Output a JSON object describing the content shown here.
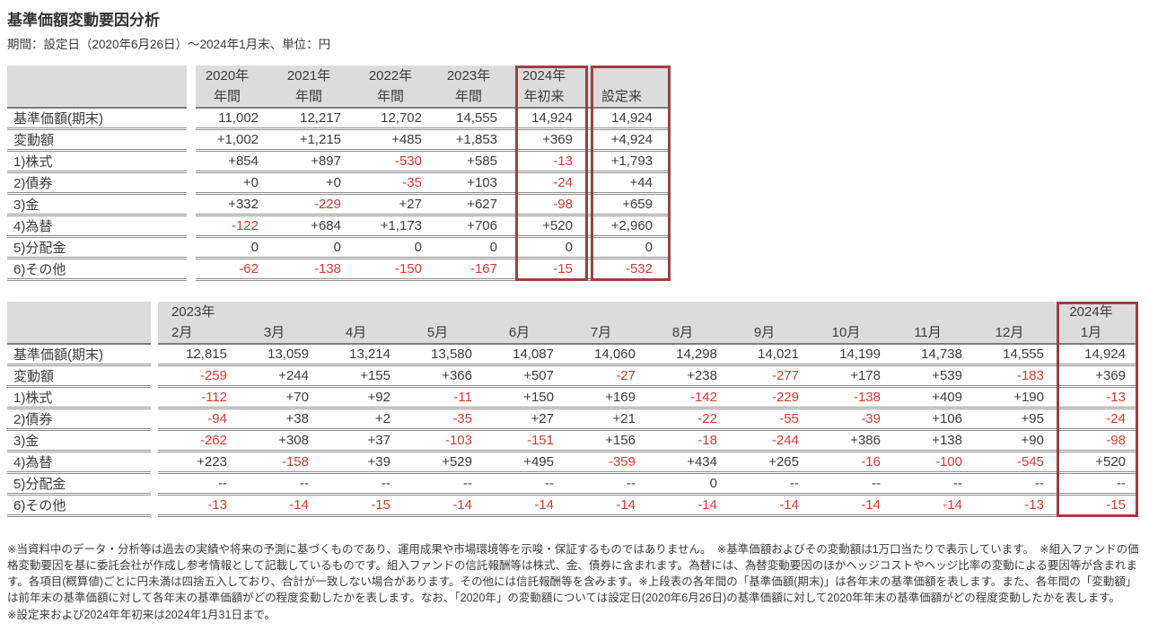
{
  "title": "基準価額変動要因分析",
  "subtitle": "期間：設定日（2020年6月26日）～2024年1月末、単位：円",
  "colors": {
    "negative_value_red": "#d63c32",
    "highlight_border_red": "#9e3e44",
    "header_background_gray": "#dcdcdc"
  },
  "annual_table": {
    "columns": [
      {
        "line1": "2020年",
        "line2": "年間"
      },
      {
        "line1": "2021年",
        "line2": "年間"
      },
      {
        "line1": "2022年",
        "line2": "年間"
      },
      {
        "line1": "2023年",
        "line2": "年間"
      },
      {
        "line1": "2024年",
        "line2": "年初来"
      },
      {
        "line1": "",
        "line2": "設定来"
      }
    ],
    "highlight_columns": [
      4,
      5
    ],
    "rows": [
      {
        "label": "基準価額(期末)",
        "values": [
          "11,002",
          "12,217",
          "12,702",
          "14,555",
          "14,924",
          "14,924"
        ]
      },
      {
        "label": "変動額",
        "values": [
          "+1,002",
          "+1,215",
          "+485",
          "+1,853",
          "+369",
          "+4,924"
        ]
      },
      {
        "label": "1)株式",
        "values": [
          "+854",
          "+897",
          "-530",
          "+585",
          "-13",
          "+1,793"
        ]
      },
      {
        "label": "2)債券",
        "values": [
          "+0",
          "+0",
          "-35",
          "+103",
          "-24",
          "+44"
        ]
      },
      {
        "label": "3)金",
        "values": [
          "+332",
          "-229",
          "+27",
          "+627",
          "-98",
          "+659"
        ]
      },
      {
        "label": "4)為替",
        "values": [
          "-122",
          "+684",
          "+1,173",
          "+706",
          "+520",
          "+2,960"
        ]
      },
      {
        "label": "5)分配金",
        "values": [
          "0",
          "0",
          "0",
          "0",
          "0",
          "0"
        ]
      },
      {
        "label": "6)その他",
        "values": [
          "-62",
          "-138",
          "-150",
          "-167",
          "-15",
          "-532"
        ]
      }
    ]
  },
  "monthly_table": {
    "columns": [
      {
        "line1": "2023年",
        "line2": "2月"
      },
      {
        "line1": "",
        "line2": "3月"
      },
      {
        "line1": "",
        "line2": "4月"
      },
      {
        "line1": "",
        "line2": "5月"
      },
      {
        "line1": "",
        "line2": "6月"
      },
      {
        "line1": "",
        "line2": "7月"
      },
      {
        "line1": "",
        "line2": "8月"
      },
      {
        "line1": "",
        "line2": "9月"
      },
      {
        "line1": "",
        "line2": "10月"
      },
      {
        "line1": "",
        "line2": "11月"
      },
      {
        "line1": "",
        "line2": "12月"
      },
      {
        "line1": "2024年",
        "line2": "1月"
      }
    ],
    "highlight_columns": [
      11
    ],
    "rows": [
      {
        "label": "基準価額(期末)",
        "values": [
          "12,815",
          "13,059",
          "13,214",
          "13,580",
          "14,087",
          "14,060",
          "14,298",
          "14,021",
          "14,199",
          "14,738",
          "14,555",
          "14,924"
        ]
      },
      {
        "label": "変動額",
        "values": [
          "-259",
          "+244",
          "+155",
          "+366",
          "+507",
          "-27",
          "+238",
          "-277",
          "+178",
          "+539",
          "-183",
          "+369"
        ]
      },
      {
        "label": "1)株式",
        "values": [
          "-112",
          "+70",
          "+92",
          "-11",
          "+150",
          "+169",
          "-142",
          "-229",
          "-138",
          "+409",
          "+190",
          "-13"
        ]
      },
      {
        "label": "2)債券",
        "values": [
          "-94",
          "+38",
          "+2",
          "-35",
          "+27",
          "+21",
          "-22",
          "-55",
          "-39",
          "+106",
          "+95",
          "-24"
        ]
      },
      {
        "label": "3)金",
        "values": [
          "-262",
          "+308",
          "+37",
          "-103",
          "-151",
          "+156",
          "-18",
          "-244",
          "+386",
          "+138",
          "+90",
          "-98"
        ]
      },
      {
        "label": "4)為替",
        "values": [
          "+223",
          "-158",
          "+39",
          "+529",
          "+495",
          "-359",
          "+434",
          "+265",
          "-16",
          "-100",
          "-545",
          "+520"
        ]
      },
      {
        "label": "5)分配金",
        "values": [
          "--",
          "--",
          "--",
          "--",
          "--",
          "--",
          "0",
          "--",
          "--",
          "--",
          "--",
          "--"
        ]
      },
      {
        "label": "6)その他",
        "values": [
          "-13",
          "-14",
          "-15",
          "-14",
          "-14",
          "-14",
          "-14",
          "-14",
          "-14",
          "-14",
          "-13",
          "-15"
        ]
      }
    ]
  },
  "footnotes": [
    "※当資料中のデータ・分析等は過去の実績や将来の予測に基づくものであり、運用成果や市場環境等を示唆・保証するものではありません。　※基準価額およびその変動額は1万口当たりで表示しています。　※組入ファンドの価格変動要因を基に委託会社が作成し参考情報として記載しているものです。組入ファンドの信託報酬等は株式、金、債券に含まれます。為替には、為替変動要因のほかヘッジコストやヘッジ比率の変動による要因等が含まれます。各項目(概算値)ごとに円未満は四捨五入しており、合計が一致しない場合があります。その他には信託報酬等を含みます。※上段表の各年間の「基準価額(期末)」は各年末の基準価額を表します。また、各年間の「変動額」は前年末の基準価額に対して各年末の基準価額がどの程度変動したかを表します。なお、「2020年」の変動額については設定日(2020年6月26日)の基準価額に対して2020年年末の基準価額がどの程度変動したかを表します。",
    "※設定来および2024年年初来は2024年1月31日まで。"
  ]
}
